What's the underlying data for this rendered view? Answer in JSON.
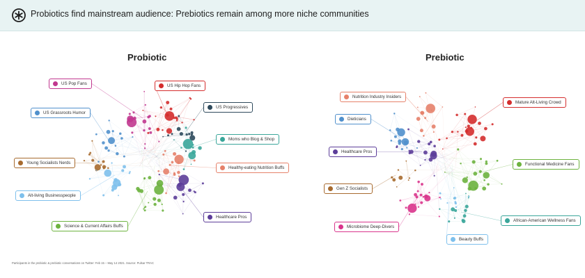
{
  "header": {
    "title": "Probiotics find mainstream audience: Prebiotics remain among more niche communities",
    "logo_icon": "asterisk-badge-icon"
  },
  "footnote": "Participants in the probiotic & prebiotic conversations on Twitter: Feb 15 – May 14 2021. Source: Pulsar TRAC",
  "probiotic": {
    "title": "Probiotic",
    "communities": [
      {
        "label": "US Pop Fans",
        "color": "#c1378f"
      },
      {
        "label": "US Hip Hop Fans",
        "color": "#d42d2d"
      },
      {
        "label": "US Grassroots Humor",
        "color": "#5090cc"
      },
      {
        "label": "US Progressives",
        "color": "#2e4a5c"
      },
      {
        "label": "Moms who Blog & Shop",
        "color": "#3aa69a"
      },
      {
        "label": "Young Socialists Nerds",
        "color": "#a76a2e"
      },
      {
        "label": "Healthy-eating Nutrition Buffs",
        "color": "#e6816a"
      },
      {
        "label": "Alt-living Businesspeople",
        "color": "#7ec0ec"
      },
      {
        "label": "Healthcare Pros",
        "color": "#5c3d99"
      },
      {
        "label": "Science & Current Affairs Buffs",
        "color": "#6db33f"
      }
    ]
  },
  "prebiotic": {
    "title": "Prebiotic",
    "communities": [
      {
        "label": "Nutrition Industry Insiders",
        "color": "#e6816a"
      },
      {
        "label": "Mature Alt-Living Crowd",
        "color": "#d42d2d"
      },
      {
        "label": "Dieticians",
        "color": "#5090cc"
      },
      {
        "label": "Healthcare Pros",
        "color": "#5c3d99"
      },
      {
        "label": "Functional Medicine Fans",
        "color": "#6db33f"
      },
      {
        "label": "Gen Z Socialists",
        "color": "#a76a2e"
      },
      {
        "label": "Microbiome Deep-Divers",
        "color": "#d9348c"
      },
      {
        "label": "African-American Wellness Fans",
        "color": "#3aa69a"
      },
      {
        "label": "Beauty Buffs",
        "color": "#7ec0ec"
      }
    ]
  }
}
